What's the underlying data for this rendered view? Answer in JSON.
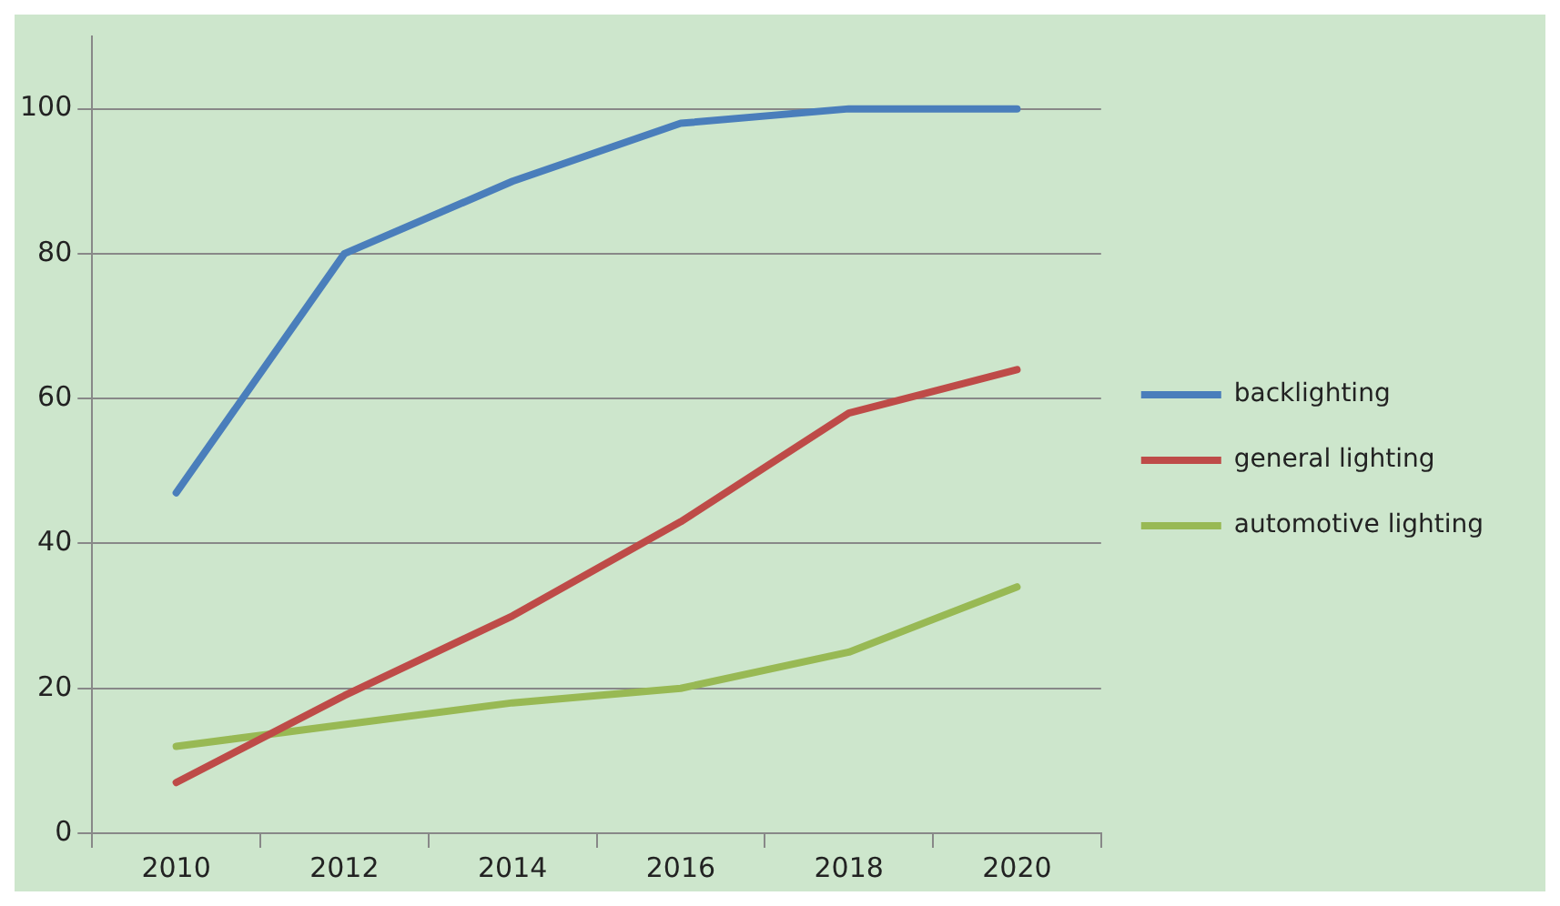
{
  "chart_data": {
    "type": "line",
    "categories": [
      "2010",
      "2012",
      "2014",
      "2016",
      "2018",
      "2020"
    ],
    "series": [
      {
        "name": "backlighting",
        "color": "#4a7ebb",
        "values": [
          47,
          80,
          90,
          98,
          100,
          100
        ]
      },
      {
        "name": "general lighting",
        "color": "#be4b48",
        "values": [
          7,
          19,
          30,
          43,
          58,
          64
        ]
      },
      {
        "name": "automotive lighting",
        "color": "#98b954",
        "values": [
          12,
          15,
          18,
          20,
          25,
          34
        ]
      }
    ],
    "ylim": [
      0,
      110
    ],
    "yticks": [
      0,
      20,
      40,
      60,
      80,
      100
    ],
    "grid": "y",
    "legend": "right",
    "marker": "none",
    "line_style": "solid"
  }
}
